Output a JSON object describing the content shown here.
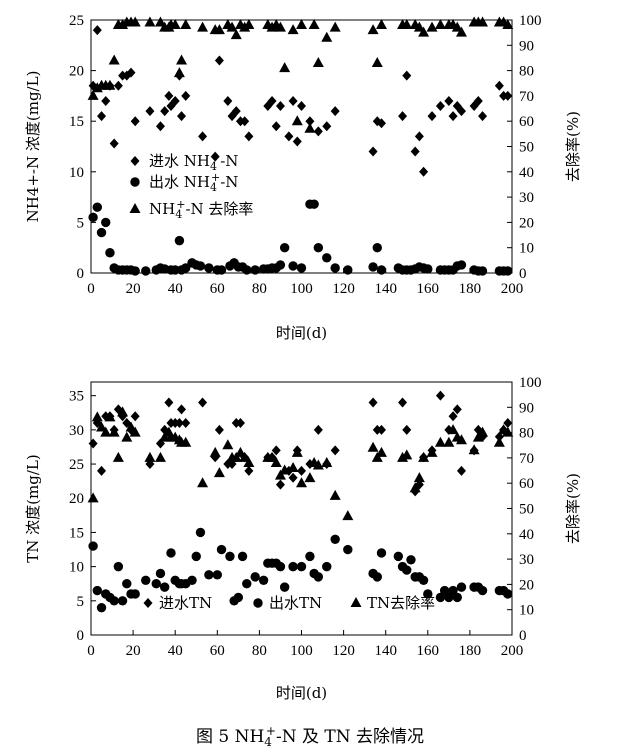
{
  "chart_data": [
    {
      "type": "scatter",
      "xlabel": "时间(d)",
      "ylabel_left": "NH4+-N 浓度(mg/L)",
      "ylabel_right": "去除率(%)",
      "xlim": [
        0,
        200
      ],
      "ylim_left": [
        0,
        25
      ],
      "ylim_right": [
        0,
        100
      ],
      "x_ticks": [
        0,
        20,
        40,
        60,
        80,
        100,
        120,
        140,
        160,
        180,
        200
      ],
      "y_ticks_left": [
        0,
        5,
        10,
        15,
        20,
        25
      ],
      "y_ticks_right": [
        0,
        10,
        20,
        30,
        40,
        50,
        60,
        70,
        80,
        90,
        100
      ],
      "legend_position": "middle-left",
      "series": [
        {
          "name": "进水 NH4+-N",
          "marker": "diamond",
          "axis": "left",
          "x": [
            1,
            3,
            5,
            7,
            9,
            11,
            13,
            15,
            17,
            19,
            21,
            28,
            33,
            35,
            37,
            38,
            40,
            42,
            43,
            45,
            53,
            59,
            61,
            65,
            67,
            69,
            71,
            73,
            75,
            84,
            86,
            88,
            90,
            94,
            96,
            98,
            100,
            104,
            108,
            112,
            116,
            134,
            136,
            138,
            148,
            150,
            154,
            156,
            158,
            162,
            166,
            170,
            172,
            174,
            176,
            182,
            184,
            186,
            194,
            196,
            198
          ],
          "y": [
            18.5,
            24,
            15.5,
            17,
            18.5,
            12.8,
            18.5,
            19.5,
            19.5,
            19.8,
            15,
            16,
            14.5,
            16,
            17.5,
            16.5,
            17,
            19.5,
            15.5,
            17.5,
            13.5,
            11.5,
            21,
            17,
            15.5,
            16,
            15,
            15,
            13.5,
            16.5,
            17,
            14.5,
            16.5,
            13.5,
            17,
            13,
            16.5,
            15,
            14,
            14.5,
            16,
            12,
            15,
            14.8,
            15.5,
            19.5,
            12,
            13.5,
            10,
            15.5,
            16.5,
            17,
            15.5,
            16.5,
            16,
            16.5,
            17,
            15.5,
            18.5,
            17.5,
            17.5
          ]
        },
        {
          "name": "出水 NH4+-N",
          "marker": "circle",
          "axis": "left",
          "x": [
            1,
            3,
            5,
            7,
            9,
            11,
            13,
            15,
            17,
            19,
            21,
            26,
            31,
            33,
            35,
            38,
            40,
            42,
            43,
            45,
            48,
            50,
            52,
            56,
            60,
            62,
            66,
            68,
            70,
            72,
            74,
            78,
            82,
            84,
            86,
            88,
            90,
            92,
            96,
            100,
            104,
            106,
            108,
            112,
            116,
            122,
            134,
            136,
            138,
            146,
            148,
            150,
            152,
            154,
            156,
            158,
            160,
            166,
            168,
            170,
            172,
            174,
            176,
            182,
            184,
            186,
            194,
            196,
            198
          ],
          "y": [
            5.5,
            6.5,
            4,
            5,
            2,
            0.5,
            0.3,
            0.3,
            0.3,
            0.3,
            0.2,
            0.2,
            0.3,
            0.5,
            0.4,
            0.3,
            0.3,
            3.2,
            0.3,
            0.5,
            1,
            0.8,
            0.7,
            0.5,
            0.3,
            0.3,
            0.7,
            1,
            0.6,
            0.6,
            0.3,
            0.3,
            0.4,
            0.4,
            0.5,
            0.5,
            0.8,
            2.5,
            0.7,
            0.5,
            6.8,
            6.8,
            2.5,
            1.5,
            0.5,
            0.3,
            0.6,
            2.5,
            0.3,
            0.5,
            0.3,
            0.3,
            0.3,
            0.4,
            0.6,
            0.5,
            0.4,
            0.3,
            0.3,
            0.3,
            0.3,
            0.7,
            0.8,
            0.3,
            0.2,
            0.2,
            0.2,
            0.2,
            0.2
          ]
        },
        {
          "name": "NH4+-N 去除率",
          "marker": "triangle",
          "axis": "right",
          "x": [
            1,
            3,
            5,
            7,
            9,
            11,
            13,
            15,
            17,
            19,
            21,
            28,
            33,
            35,
            37,
            38,
            40,
            42,
            43,
            45,
            53,
            59,
            61,
            65,
            67,
            69,
            71,
            73,
            75,
            84,
            86,
            88,
            90,
            92,
            96,
            98,
            100,
            104,
            106,
            108,
            112,
            116,
            134,
            136,
            138,
            148,
            150,
            154,
            156,
            158,
            162,
            166,
            170,
            172,
            174,
            176,
            182,
            184,
            186,
            194,
            196,
            198
          ],
          "y": [
            70,
            73,
            74,
            74,
            74,
            84,
            98,
            98,
            99,
            99,
            99,
            99,
            99,
            97,
            97,
            98,
            98,
            79,
            84,
            98,
            97,
            96,
            96,
            98,
            97,
            94,
            98,
            97,
            98,
            98,
            97,
            98,
            97,
            81,
            96,
            60,
            98,
            57,
            98,
            83,
            93,
            97,
            96,
            83,
            98,
            98,
            98,
            98,
            97,
            95,
            97,
            98,
            98,
            98,
            97,
            95,
            99,
            99,
            99,
            99,
            99,
            98
          ]
        }
      ],
      "legend_labels": [
        {
          "pre": "进水 NH",
          "sub": "4",
          "sup": "+",
          "post": "-N"
        },
        {
          "pre": "出水 NH",
          "sub": "4",
          "sup": "+",
          "post": "-N"
        },
        {
          "pre": "NH",
          "sub": "4",
          "sup": "+",
          "post": "-N 去除率"
        }
      ]
    },
    {
      "type": "scatter",
      "xlabel": "时间(d)",
      "ylabel_left": "TN 浓度(mg/L)",
      "ylabel_right": "去除率(%)",
      "xlim": [
        0,
        200
      ],
      "ylim_left": [
        0,
        37
      ],
      "ylim_right": [
        0,
        100
      ],
      "x_ticks": [
        0,
        20,
        40,
        60,
        80,
        100,
        120,
        140,
        160,
        180,
        200
      ],
      "y_ticks_left": [
        0,
        5,
        10,
        15,
        20,
        25,
        30,
        35
      ],
      "y_ticks_right": [
        0,
        10,
        20,
        30,
        40,
        50,
        60,
        70,
        80,
        90,
        100
      ],
      "legend_position": "bottom",
      "series": [
        {
          "name": "进水TN",
          "marker": "diamond",
          "axis": "left",
          "x": [
            1,
            3,
            5,
            7,
            9,
            11,
            13,
            15,
            17,
            19,
            21,
            28,
            33,
            35,
            37,
            38,
            40,
            42,
            43,
            45,
            53,
            59,
            61,
            65,
            67,
            69,
            71,
            73,
            75,
            84,
            86,
            88,
            90,
            94,
            96,
            98,
            100,
            104,
            108,
            112,
            116,
            134,
            136,
            138,
            148,
            150,
            154,
            156,
            158,
            162,
            166,
            170,
            172,
            174,
            176,
            182,
            184,
            186,
            194,
            196,
            198
          ],
          "y": [
            28,
            31,
            24,
            32,
            32,
            30,
            33,
            32,
            31,
            30,
            32,
            25,
            28,
            30,
            34,
            31,
            31,
            31,
            33,
            31,
            34,
            26,
            30,
            25,
            25,
            31,
            31,
            26,
            24,
            26,
            26,
            27,
            22,
            24,
            23,
            27,
            24,
            25,
            30,
            25,
            27,
            34,
            30,
            30,
            34,
            30,
            21,
            22,
            26,
            27,
            35,
            30,
            32,
            33,
            24,
            27,
            30,
            29,
            29,
            30,
            31
          ]
        },
        {
          "name": "出水TN",
          "marker": "circle",
          "axis": "left",
          "x": [
            1,
            3,
            5,
            7,
            9,
            11,
            13,
            15,
            17,
            19,
            21,
            26,
            31,
            33,
            35,
            38,
            40,
            42,
            43,
            45,
            48,
            50,
            52,
            56,
            60,
            62,
            66,
            68,
            70,
            72,
            74,
            78,
            82,
            84,
            86,
            88,
            90,
            92,
            96,
            100,
            104,
            106,
            108,
            112,
            116,
            122,
            134,
            136,
            138,
            146,
            148,
            150,
            152,
            154,
            156,
            158,
            160,
            166,
            168,
            170,
            172,
            174,
            176,
            182,
            184,
            186,
            194,
            196,
            198
          ],
          "y": [
            13,
            6.5,
            4,
            6,
            5.5,
            5,
            10,
            5,
            7.5,
            6,
            6,
            8,
            7.5,
            9,
            7,
            12,
            8,
            7.5,
            7.5,
            7.5,
            8,
            11.5,
            15,
            8.8,
            8.8,
            12.5,
            11.5,
            5,
            5.5,
            11.5,
            7.5,
            8.5,
            8,
            10.5,
            10.5,
            10.5,
            10,
            7,
            10,
            10,
            11.5,
            9,
            8.5,
            10,
            14,
            12.5,
            9,
            8.5,
            12,
            11.5,
            10,
            9.5,
            11,
            8.5,
            8.5,
            8,
            6,
            5.5,
            6.5,
            5.5,
            6.5,
            5.5,
            7,
            7,
            7,
            6.5,
            6.5,
            6.5,
            6
          ]
        },
        {
          "name": "TN去除率",
          "marker": "triangle",
          "axis": "right",
          "x": [
            1,
            3,
            5,
            7,
            9,
            11,
            13,
            15,
            17,
            19,
            21,
            28,
            33,
            35,
            37,
            38,
            40,
            42,
            43,
            45,
            53,
            59,
            61,
            65,
            67,
            69,
            71,
            73,
            75,
            84,
            86,
            88,
            90,
            92,
            96,
            98,
            100,
            104,
            106,
            108,
            112,
            116,
            122,
            134,
            136,
            138,
            148,
            150,
            154,
            156,
            158,
            162,
            166,
            170,
            172,
            174,
            176,
            182,
            184,
            186,
            194,
            196,
            198
          ],
          "y": [
            54,
            86,
            82,
            80,
            86,
            80,
            70,
            88,
            78,
            82,
            80,
            70,
            70,
            78,
            80,
            78,
            78,
            77,
            76,
            76,
            60,
            72,
            64,
            75,
            70,
            70,
            72,
            70,
            68,
            70,
            70,
            68,
            63,
            65,
            66,
            72,
            60,
            62,
            68,
            67,
            68,
            55,
            47,
            74,
            70,
            72,
            70,
            71,
            58,
            62,
            70,
            72,
            76,
            76,
            81,
            78,
            77,
            73,
            78,
            80,
            76,
            81,
            80
          ]
        }
      ],
      "legend_labels": [
        "进水TN",
        "出水TN",
        "TN去除率"
      ]
    }
  ],
  "caption": {
    "pre": "图 5   NH",
    "sub": "4",
    "sup": "+",
    "post": "-N 及 TN 去除情况"
  }
}
